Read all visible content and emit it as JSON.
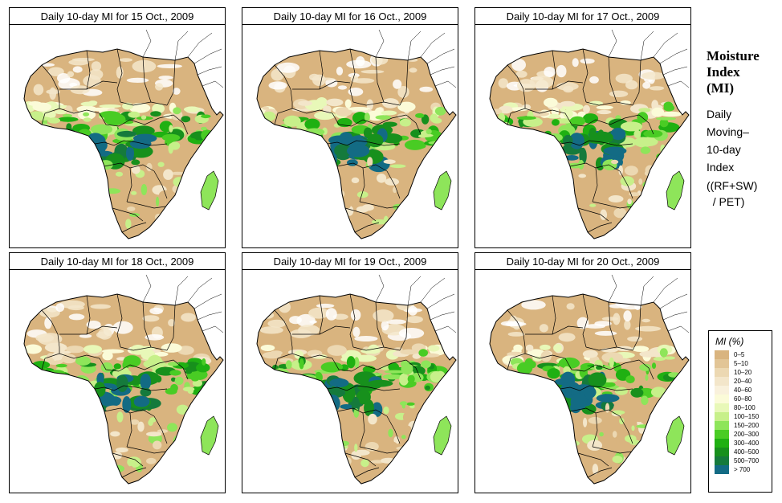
{
  "panels": [
    {
      "title": "Daily 10-day MI for  15 Oct., 2009",
      "variant": 0
    },
    {
      "title": "Daily 10-day MI for  16 Oct., 2009",
      "variant": 1
    },
    {
      "title": "Daily 10-day MI for  17 Oct., 2009",
      "variant": 2
    },
    {
      "title": "Daily 10-day MI for  18 Oct., 2009",
      "variant": 1
    },
    {
      "title": "Daily 10-day MI for  19 Oct., 2009",
      "variant": 0
    },
    {
      "title": "Daily 10-day MI for  20 Oct., 2009",
      "variant": 2
    }
  ],
  "sidebar": {
    "title_lines": [
      "Moisture",
      "Index",
      "(MI)"
    ],
    "description_lines": [
      "Daily",
      "Moving–",
      "10-day",
      "Index"
    ],
    "formula_lines": [
      "((RF+SW)",
      "  / PET)"
    ]
  },
  "legend": {
    "title": "MI (%)",
    "items": [
      {
        "label": "0–5",
        "color": "#d9b47f"
      },
      {
        "label": "5–10",
        "color": "#e2c596"
      },
      {
        "label": "10–20",
        "color": "#ecd8b2"
      },
      {
        "label": "20–40",
        "color": "#f3e6ca"
      },
      {
        "label": "40–60",
        "color": "#f9f1dc"
      },
      {
        "label": "60–80",
        "color": "#fbfbd8"
      },
      {
        "label": "80–100",
        "color": "#e8f8b8"
      },
      {
        "label": "100–150",
        "color": "#c7f08a"
      },
      {
        "label": "150–200",
        "color": "#8ee55a"
      },
      {
        "label": "200–300",
        "color": "#49cc24"
      },
      {
        "label": "300–400",
        "color": "#1fb012"
      },
      {
        "label": "400–500",
        "color": "#17901c"
      },
      {
        "label": "500–700",
        "color": "#157a3c"
      },
      {
        "label": "> 700",
        "color": "#136b84"
      }
    ]
  }
}
